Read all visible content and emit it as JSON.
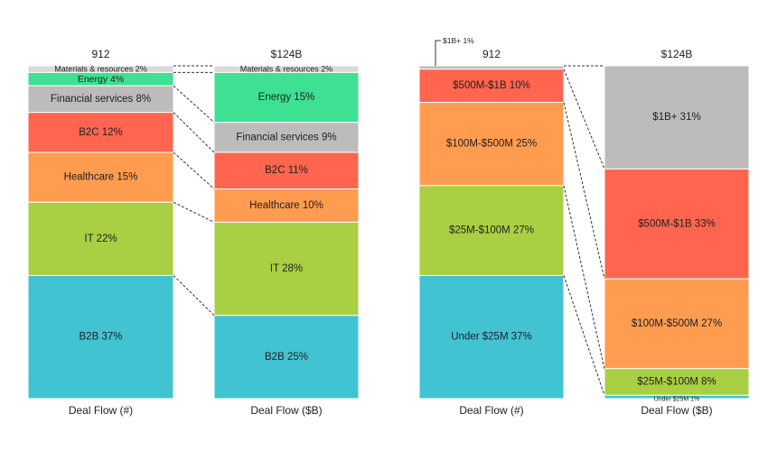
{
  "chart_data": [
    {
      "type": "stacked-bar",
      "panel": "sector",
      "bars": [
        {
          "total_label": "912",
          "axis_label": "Deal Flow (#)",
          "segments": [
            {
              "label": "Materials & resources 2%",
              "value": 2,
              "color": "#d9d9d9"
            },
            {
              "label": "Energy 4%",
              "value": 4,
              "color": "#3ee094"
            },
            {
              "label": "Financial services 8%",
              "value": 8,
              "color": "#bdbbbb"
            },
            {
              "label": "B2C 12%",
              "value": 12,
              "color": "#ff654f"
            },
            {
              "label": "Healthcare 15%",
              "value": 15,
              "color": "#ff9c50"
            },
            {
              "label": "IT 22%",
              "value": 22,
              "color": "#a9cf42"
            },
            {
              "label": "B2B 37%",
              "value": 37,
              "color": "#42c3d2"
            }
          ]
        },
        {
          "total_label": "$124B",
          "axis_label": "Deal Flow ($B)",
          "segments": [
            {
              "label": "Materials & resources 2%",
              "value": 2,
              "color": "#d9d9d9"
            },
            {
              "label": "Energy 15%",
              "value": 15,
              "color": "#3ee094"
            },
            {
              "label": "Financial services 9%",
              "value": 9,
              "color": "#bdbbbb"
            },
            {
              "label": "B2C 11%",
              "value": 11,
              "color": "#ff654f"
            },
            {
              "label": "Healthcare 10%",
              "value": 10,
              "color": "#ff9c50"
            },
            {
              "label": "IT 28%",
              "value": 28,
              "color": "#a9cf42"
            },
            {
              "label": "B2B 25%",
              "value": 25,
              "color": "#42c3d2"
            }
          ]
        }
      ]
    },
    {
      "type": "stacked-bar",
      "panel": "deal-size",
      "bars": [
        {
          "total_label": "912",
          "axis_label": "Deal Flow (#)",
          "segments": [
            {
              "label": "$1B+ 1%",
              "value": 1,
              "color": "#bdbbbb",
              "callout": true
            },
            {
              "label": "$500M-$1B 10%",
              "value": 10,
              "color": "#ff654f"
            },
            {
              "label": "$100M-$500M 25%",
              "value": 25,
              "color": "#ff9c50"
            },
            {
              "label": "$25M-$100M 27%",
              "value": 27,
              "color": "#a9cf42"
            },
            {
              "label": "Under $25M 37%",
              "value": 37,
              "color": "#42c3d2"
            }
          ]
        },
        {
          "total_label": "$124B",
          "axis_label": "Deal Flow ($B)",
          "segments": [
            {
              "label": "$1B+ 31%",
              "value": 31,
              "color": "#bdbbbb"
            },
            {
              "label": "$500M-$1B 33%",
              "value": 33,
              "color": "#ff654f"
            },
            {
              "label": "$100M-$500M 27%",
              "value": 27,
              "color": "#ff9c50"
            },
            {
              "label": "$25M-$100M 8%",
              "value": 8,
              "color": "#a9cf42"
            },
            {
              "label": "Under $25M 1%",
              "value": 1,
              "color": "#42c3d2"
            }
          ]
        }
      ]
    }
  ]
}
